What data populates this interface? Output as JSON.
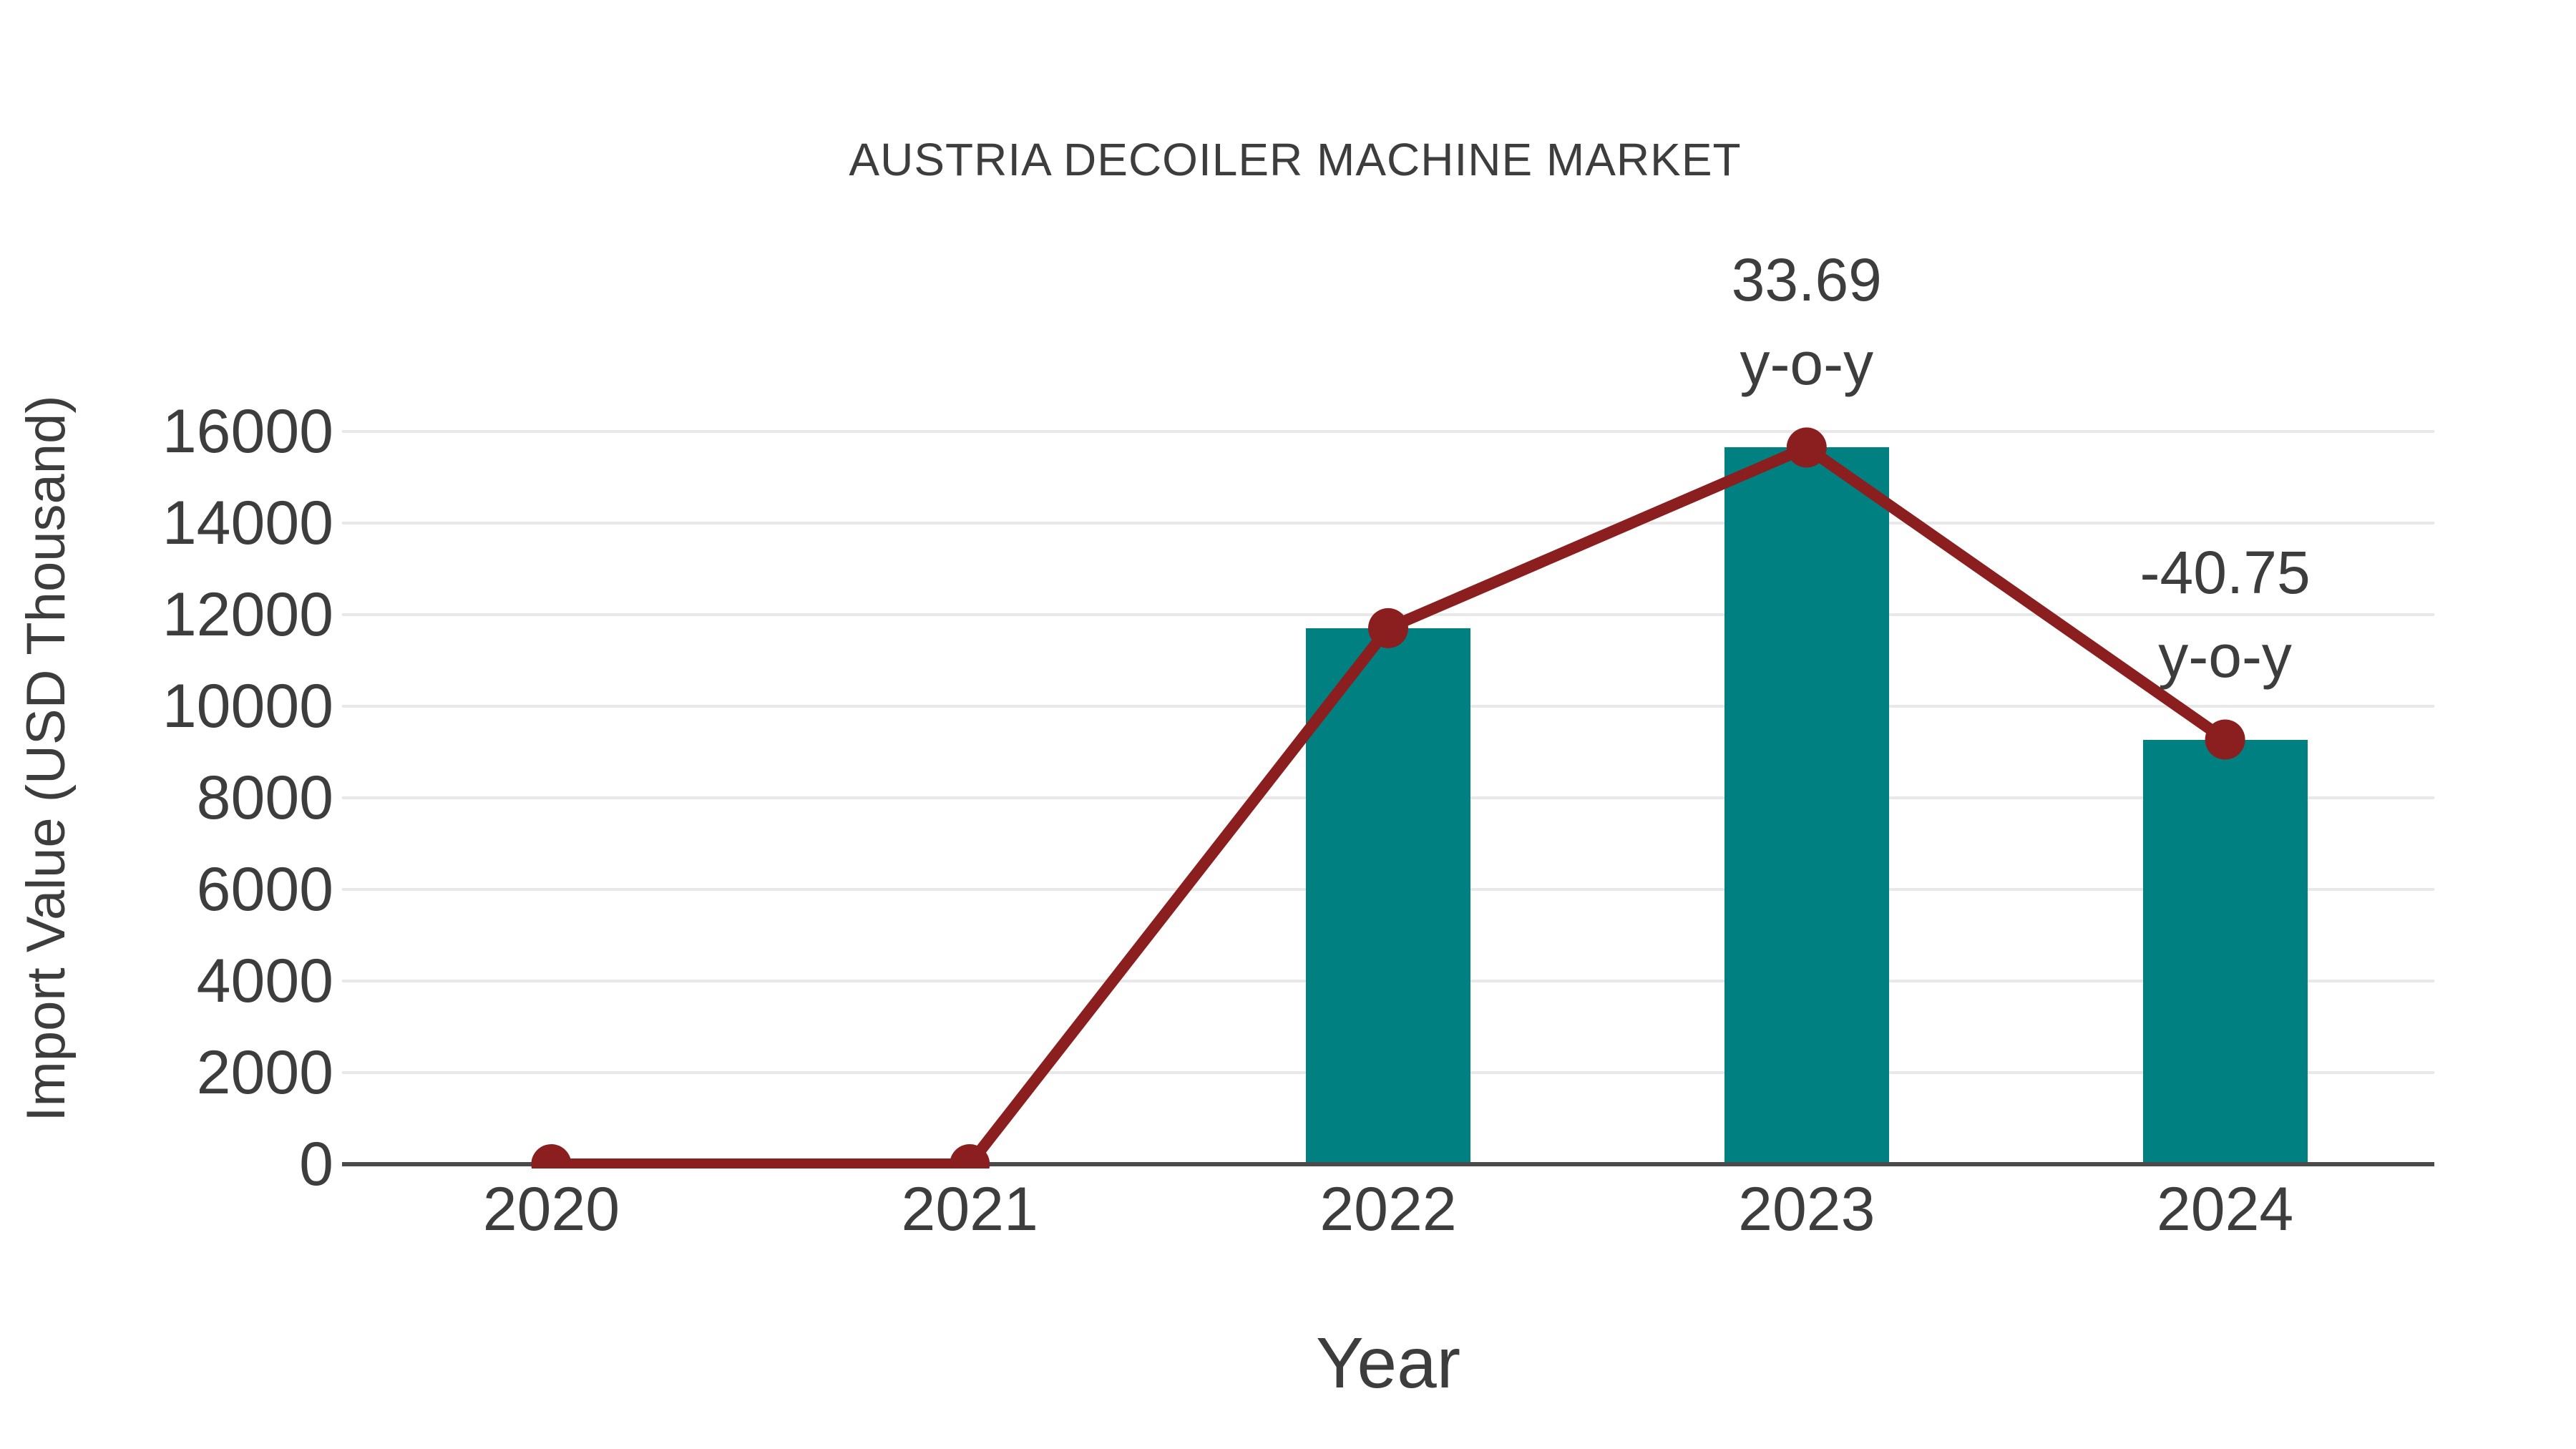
{
  "chart_data": {
    "type": "bar+line",
    "title": "AUSTRIA DECOILER MACHINE MARKET",
    "xlabel": "Year",
    "ylabel": "Import Value (USD Thousand)",
    "categories": [
      "2020",
      "2021",
      "2022",
      "2023",
      "2024"
    ],
    "values": [
      0,
      0,
      11706,
      15650,
      9273
    ],
    "yticks": [
      0,
      2000,
      4000,
      6000,
      8000,
      10000,
      12000,
      14000,
      16000
    ],
    "ylim": [
      0,
      16000
    ],
    "grid": true,
    "legend": "none",
    "bar_color": "#008080",
    "line_color": "#8B1E1E",
    "annotations": [
      {
        "category": "2023",
        "lines": [
          "33.69",
          "y-o-y"
        ]
      },
      {
        "category": "2024",
        "lines": [
          "-40.75",
          "y-o-y"
        ]
      }
    ]
  },
  "colors": {
    "text": "#3d3d3d",
    "grid": "#e8e8e8",
    "axis": "#4a4a4a",
    "background": "#ffffff"
  }
}
